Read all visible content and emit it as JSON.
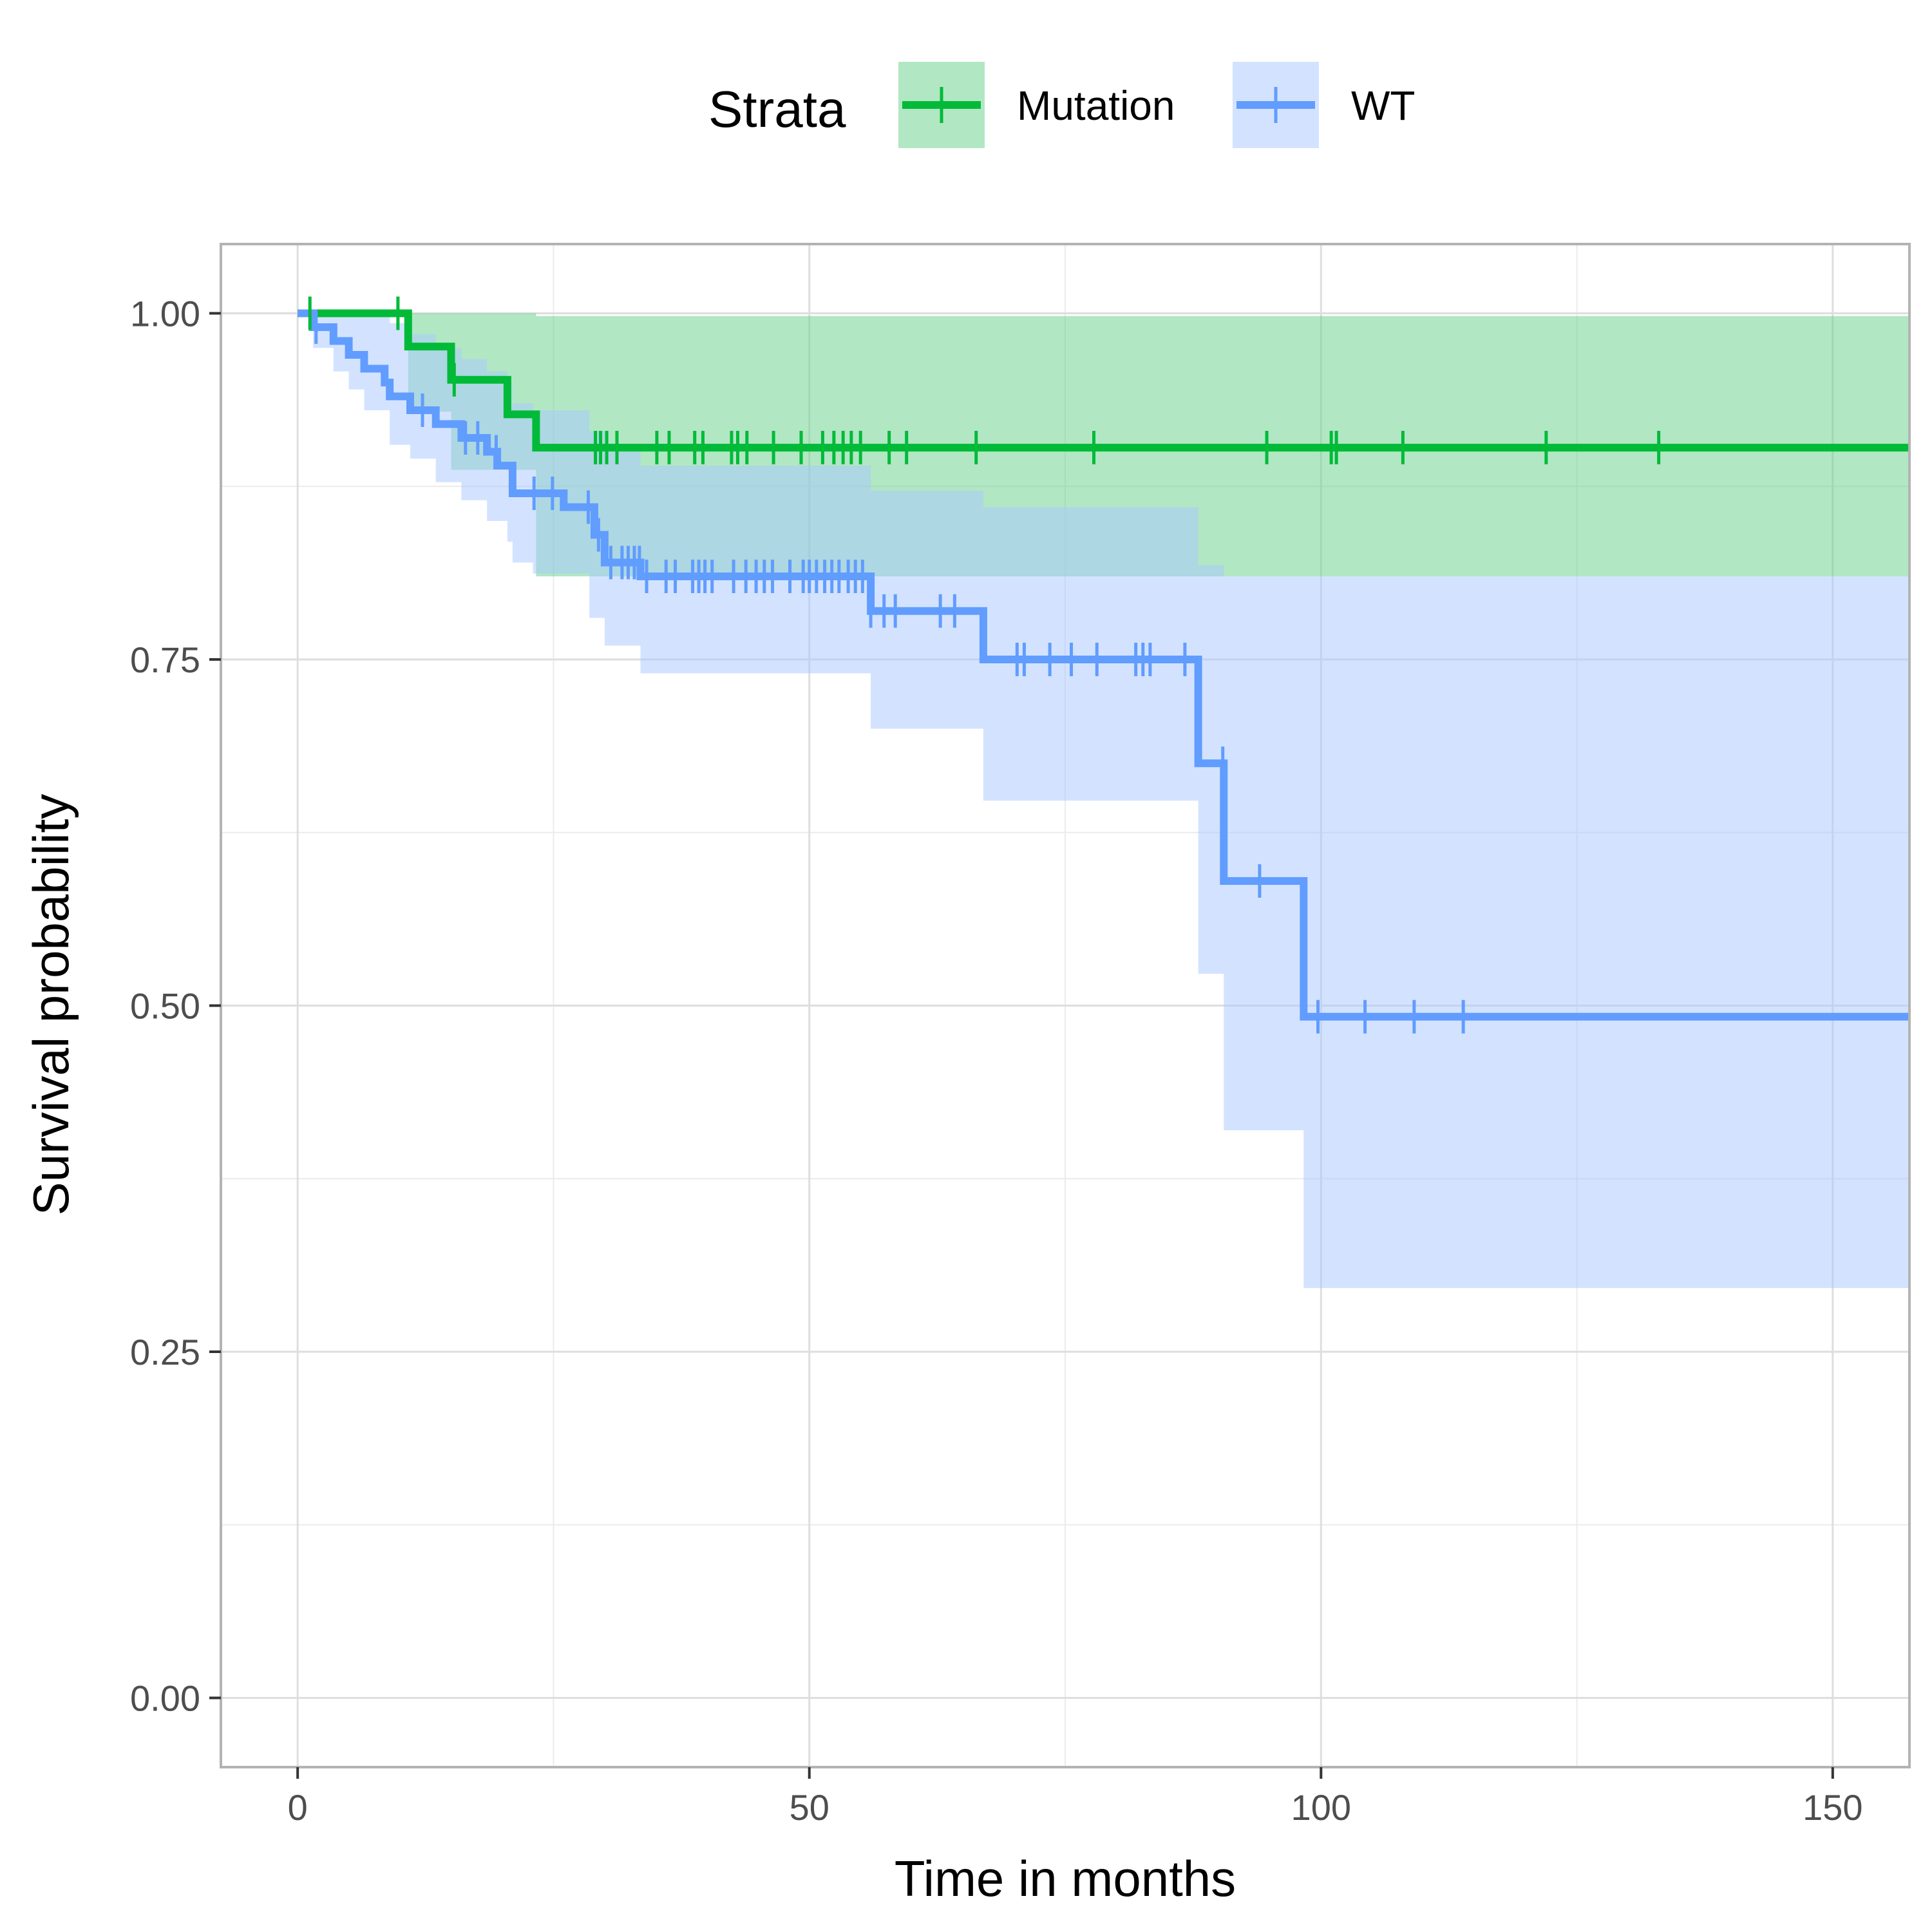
{
  "chart_data": {
    "type": "line",
    "subtype": "kaplan-meier",
    "xlabel": "Time in months",
    "ylabel": "Survival probability",
    "xlim": [
      -7.5,
      157.5
    ],
    "ylim": [
      -0.05,
      1.05
    ],
    "x_ticks": [
      0,
      50,
      100,
      150
    ],
    "x_tick_labels": [
      "0",
      "50",
      "100",
      "150"
    ],
    "y_ticks": [
      0,
      0.25,
      0.5,
      0.75,
      1.0
    ],
    "y_tick_labels": [
      "0.00",
      "0.25",
      "0.50",
      "0.75",
      "1.00"
    ],
    "grid": true,
    "legend": {
      "title": "Strata",
      "position": "top",
      "entries": [
        "Mutation",
        "WT"
      ]
    },
    "series": [
      {
        "name": "Mutation",
        "color": "#00BA38",
        "band_color": "#66d08a",
        "steps": [
          [
            0,
            1.0
          ],
          [
            10.8,
            0.976
          ],
          [
            15,
            0.952
          ],
          [
            20.5,
            0.927
          ],
          [
            23.3,
            0.903
          ],
          [
            157.5,
            0.903
          ]
        ],
        "ci": [
          {
            "x": 0,
            "lo": 1.0,
            "hi": 1.0
          },
          {
            "x": 10.8,
            "lo": 0.929,
            "hi": 1.0
          },
          {
            "x": 15,
            "lo": 0.887,
            "hi": 1.0
          },
          {
            "x": 23.3,
            "lo": 0.81,
            "hi": 0.998
          },
          {
            "x": 157.5,
            "lo": 0.81,
            "hi": 0.998
          }
        ],
        "censor_times": [
          1.2,
          9.8,
          15.3,
          29.1,
          29.6,
          30.2,
          31.2,
          35.1,
          36.3,
          38.8,
          39.6,
          42.4,
          43.0,
          43.9,
          46.5,
          49.2,
          51.3,
          52.4,
          53.3,
          54.1,
          55.0,
          57.8,
          59.5,
          66.3,
          77.8,
          94.7,
          101.0,
          101.5,
          108.0,
          122.0,
          133.0
        ]
      },
      {
        "name": "WT",
        "color": "#619CFF",
        "band_color": "#a8c8ff",
        "steps": [
          [
            0,
            1.0
          ],
          [
            1.5,
            0.99
          ],
          [
            3.5,
            0.98
          ],
          [
            5,
            0.97
          ],
          [
            6.5,
            0.96
          ],
          [
            8.5,
            0.95
          ],
          [
            9,
            0.94
          ],
          [
            11,
            0.93
          ],
          [
            13.5,
            0.92
          ],
          [
            16,
            0.91
          ],
          [
            18.5,
            0.9
          ],
          [
            19.5,
            0.89
          ],
          [
            21,
            0.87
          ],
          [
            26,
            0.86
          ],
          [
            29,
            0.84
          ],
          [
            30,
            0.82
          ],
          [
            33.5,
            0.81
          ],
          [
            56,
            0.785
          ],
          [
            67,
            0.75
          ],
          [
            88,
            0.675
          ],
          [
            90.5,
            0.59
          ],
          [
            98.3,
            0.492
          ],
          [
            157.5,
            0.492
          ]
        ],
        "ci": [
          {
            "x": 0,
            "lo": 1.0,
            "hi": 1.0
          },
          {
            "x": 1.5,
            "lo": 0.975,
            "hi": 1.0
          },
          {
            "x": 3.5,
            "lo": 0.958,
            "hi": 1.0
          },
          {
            "x": 5,
            "lo": 0.945,
            "hi": 1.0
          },
          {
            "x": 6.5,
            "lo": 0.93,
            "hi": 0.998
          },
          {
            "x": 9,
            "lo": 0.905,
            "hi": 0.993
          },
          {
            "x": 11,
            "lo": 0.895,
            "hi": 0.985
          },
          {
            "x": 13.5,
            "lo": 0.878,
            "hi": 0.975
          },
          {
            "x": 16,
            "lo": 0.865,
            "hi": 0.967
          },
          {
            "x": 18.5,
            "lo": 0.85,
            "hi": 0.958
          },
          {
            "x": 20.5,
            "lo": 0.835,
            "hi": 0.95
          },
          {
            "x": 21,
            "lo": 0.82,
            "hi": 0.935
          },
          {
            "x": 23,
            "lo": 0.812,
            "hi": 0.93
          },
          {
            "x": 28.5,
            "lo": 0.78,
            "hi": 0.915
          },
          {
            "x": 30,
            "lo": 0.76,
            "hi": 0.9
          },
          {
            "x": 33.5,
            "lo": 0.74,
            "hi": 0.89
          },
          {
            "x": 56,
            "lo": 0.7,
            "hi": 0.872
          },
          {
            "x": 67,
            "lo": 0.648,
            "hi": 0.86
          },
          {
            "x": 88,
            "lo": 0.523,
            "hi": 0.818
          },
          {
            "x": 90.5,
            "lo": 0.41,
            "hi": 0.81
          },
          {
            "x": 98.3,
            "lo": 0.296,
            "hi": 0.81
          },
          {
            "x": 157.5,
            "lo": 0.296,
            "hi": 0.81
          }
        ],
        "censor_times": [
          1.8,
          12.2,
          16.4,
          17.6,
          19.4,
          23.1,
          24.9,
          28.4,
          29.4,
          30.6,
          31.7,
          32.3,
          32.9,
          33.4,
          34.1,
          36.0,
          36.9,
          38.6,
          39.2,
          39.8,
          40.5,
          42.6,
          43.8,
          44.8,
          45.6,
          46.4,
          48.1,
          49.4,
          50.0,
          50.7,
          51.5,
          52.2,
          52.9,
          53.8,
          54.5,
          55.2,
          56.0,
          57.3,
          58.4,
          62.8,
          64.2,
          70.3,
          71.0,
          73.5,
          75.6,
          78.1,
          81.9,
          82.6,
          83.3,
          86.7,
          90.4,
          94.0,
          99.7,
          104.3,
          109.1,
          113.9
        ]
      }
    ]
  }
}
